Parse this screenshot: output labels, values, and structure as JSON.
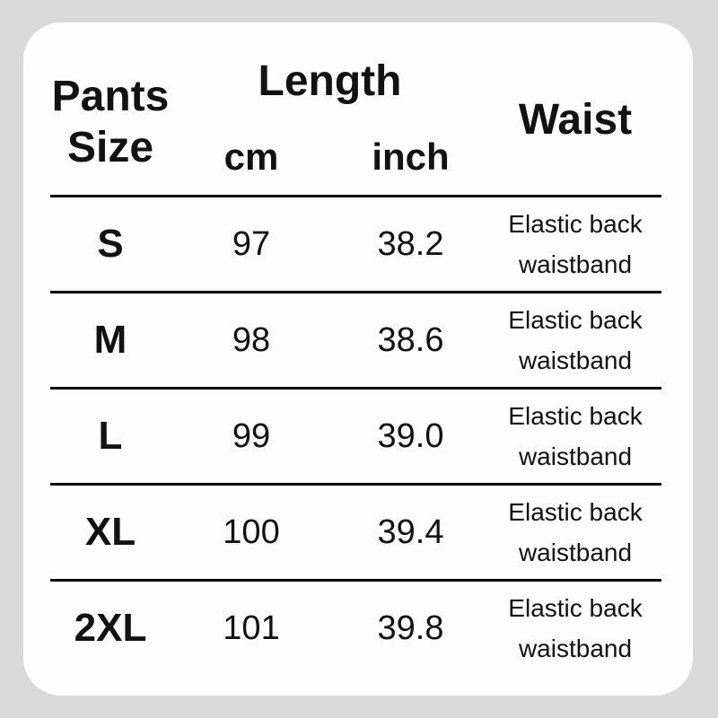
{
  "page": {
    "background_color": "#d9d9d9",
    "card_color": "#fdfdfd",
    "text_color": "#121212",
    "rule_color": "#000000"
  },
  "table": {
    "header": {
      "size_line1": "Pants",
      "size_line2": "Size",
      "length_label": "Length",
      "sub_cm": "cm",
      "sub_inch": "inch",
      "waist_label": "Waist"
    },
    "rows": [
      {
        "size": "S",
        "cm": "97",
        "inch": "38.2",
        "waist_line1": "Elastic back",
        "waist_line2": "waistband"
      },
      {
        "size": "M",
        "cm": "98",
        "inch": "38.6",
        "waist_line1": "Elastic back",
        "waist_line2": "waistband"
      },
      {
        "size": "L",
        "cm": "99",
        "inch": "39.0",
        "waist_line1": "Elastic back",
        "waist_line2": "waistband"
      },
      {
        "size": "XL",
        "cm": "100",
        "inch": "39.4",
        "waist_line1": "Elastic back",
        "waist_line2": "waistband"
      },
      {
        "size": "2XL",
        "cm": "101",
        "inch": "39.8",
        "waist_line1": "Elastic back",
        "waist_line2": "waistband"
      }
    ]
  },
  "chart_data": {
    "type": "table",
    "title": "Pants size chart",
    "column_groups": [
      {
        "label": "Length",
        "columns": [
          "cm",
          "inch"
        ]
      }
    ],
    "columns": [
      "Pants Size",
      "Length cm",
      "Length inch",
      "Waist"
    ],
    "rows": [
      [
        "S",
        97,
        38.2,
        "Elastic back waistband"
      ],
      [
        "M",
        98,
        38.6,
        "Elastic back waistband"
      ],
      [
        "L",
        99,
        39.0,
        "Elastic back waistband"
      ],
      [
        "XL",
        100,
        39.4,
        "Elastic back waistband"
      ],
      [
        "2XL",
        101,
        39.8,
        "Elastic back waistband"
      ]
    ],
    "layout": {
      "grid": "horizontal rules between rows only",
      "legend": "none"
    }
  }
}
